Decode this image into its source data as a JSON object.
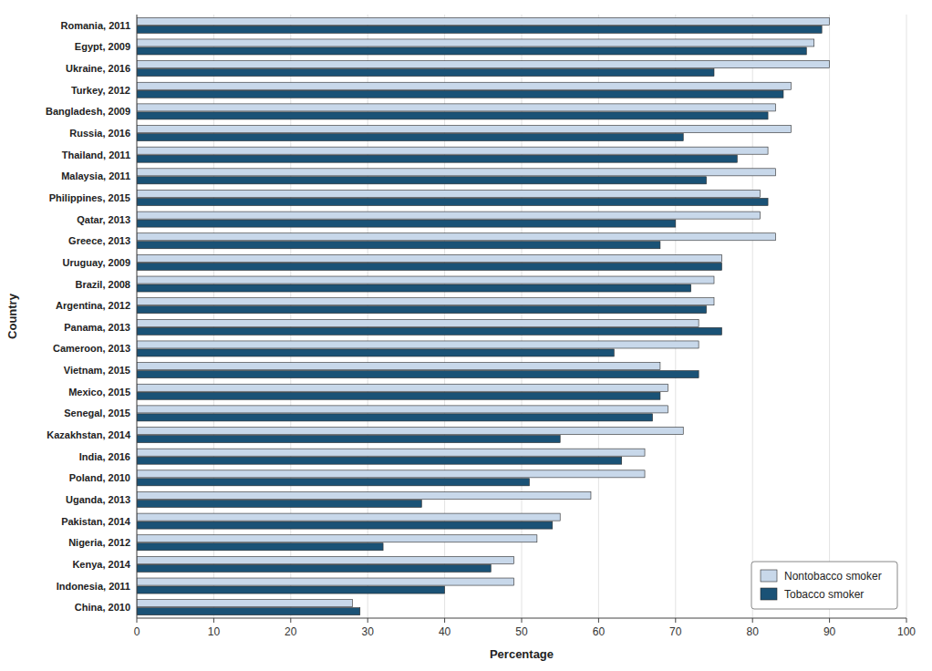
{
  "chart_data": {
    "type": "bar",
    "orientation": "horizontal",
    "xlabel": "Percentage",
    "ylabel": "Country",
    "categories": [
      "Romania, 2011",
      "Egypt, 2009",
      "Ukraine, 2016",
      "Turkey, 2012",
      "Bangladesh, 2009",
      "Russia, 2016",
      "Thailand, 2011",
      "Malaysia, 2011",
      "Philippines, 2015",
      "Qatar, 2013",
      "Greece, 2013",
      "Uruguay, 2009",
      "Brazil, 2008",
      "Argentina, 2012",
      "Panama, 2013",
      "Cameroon, 2013",
      "Vietnam, 2015",
      "Mexico, 2015",
      "Senegal, 2015",
      "Kazakhstan, 2014",
      "India, 2016",
      "Poland, 2010",
      "Uganda, 2013",
      "Pakistan, 2014",
      "Nigeria, 2012",
      "Kenya, 2014",
      "Indonesia, 2011",
      "China, 2010"
    ],
    "series": [
      {
        "name": "Nontobacco smoker",
        "color": "#c8d8ea",
        "values": [
          90,
          88,
          90,
          85,
          83,
          85,
          82,
          83,
          81,
          81,
          83,
          76,
          75,
          75,
          73,
          73,
          68,
          69,
          69,
          71,
          66,
          66,
          59,
          55,
          52,
          49,
          49,
          28
        ]
      },
      {
        "name": "Tobacco smoker",
        "color": "#1a5276",
        "values": [
          89,
          87,
          75,
          84,
          82,
          71,
          78,
          74,
          82,
          70,
          68,
          76,
          72,
          74,
          76,
          62,
          73,
          68,
          67,
          55,
          63,
          51,
          37,
          54,
          32,
          46,
          40,
          29
        ]
      }
    ],
    "xlim": [
      0,
      100
    ],
    "xticks": [
      0,
      10,
      20,
      30,
      40,
      50,
      60,
      70,
      80,
      90,
      100
    ],
    "grid": true,
    "legend": "lower right"
  }
}
